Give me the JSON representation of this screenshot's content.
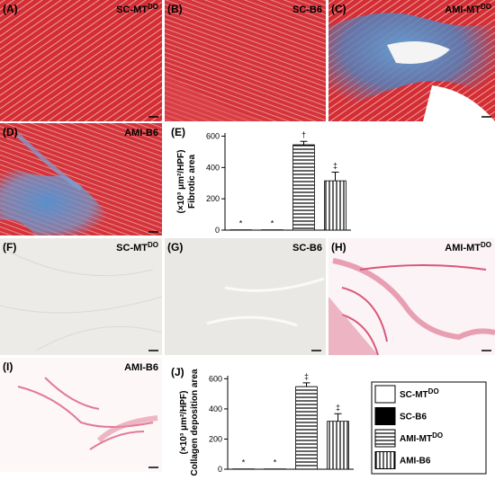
{
  "panels": [
    {
      "letter": "(A)",
      "title": "SC-MT",
      "title_sup": "DO"
    },
    {
      "letter": "(B)",
      "title": "SC-B6"
    },
    {
      "letter": "(C)",
      "title": "AMI-MT",
      "title_sup": "DO"
    },
    {
      "letter": "(D)",
      "title": "AMI-B6"
    },
    {
      "letter": "(F)",
      "title": "SC-MT",
      "title_sup": "DO"
    },
    {
      "letter": "(G)",
      "title": "SC-B6"
    },
    {
      "letter": "(H)",
      "title": "AMI-MT",
      "title_sup": "DO"
    },
    {
      "letter": "(I)",
      "title": "AMI-B6"
    }
  ],
  "legend": {
    "entries": [
      {
        "name": "SC-MT",
        "sup": "DO",
        "style": "white"
      },
      {
        "name": "SC-B6",
        "style": "black"
      },
      {
        "name": "AMI-MT",
        "sup": "DO",
        "style": "hstripe"
      },
      {
        "name": "AMI-B6",
        "style": "vstripe"
      }
    ]
  },
  "chart_data": [
    {
      "type": "bar",
      "panel_label": "(E)",
      "y_label": [
        "Fibrotic area",
        "(×10³ μm²/HPF)"
      ],
      "categories": [
        null,
        null,
        null,
        null
      ],
      "values": [
        2,
        2,
        545,
        315
      ],
      "errors": [
        null,
        null,
        22,
        55
      ],
      "bar_styles": [
        "white",
        "black",
        "hstripe",
        "vstripe"
      ],
      "annotations": [
        "*",
        "*",
        "†",
        "‡"
      ],
      "ylim": [
        0,
        620
      ],
      "yticks": [
        0,
        200,
        400,
        600
      ]
    },
    {
      "type": "bar",
      "panel_label": "(J)",
      "y_label": [
        "Collagen deposition area",
        "(×10³ μm²/HPF)"
      ],
      "categories": [
        null,
        null,
        null,
        null
      ],
      "values": [
        2,
        2,
        548,
        318
      ],
      "errors": [
        null,
        null,
        25,
        50
      ],
      "bar_styles": [
        "white",
        "black",
        "hstripe",
        "vstripe"
      ],
      "annotations": [
        "*",
        "*",
        "‡",
        "‡"
      ],
      "ylim": [
        0,
        620
      ],
      "yticks": [
        0,
        200,
        400,
        600
      ]
    }
  ]
}
